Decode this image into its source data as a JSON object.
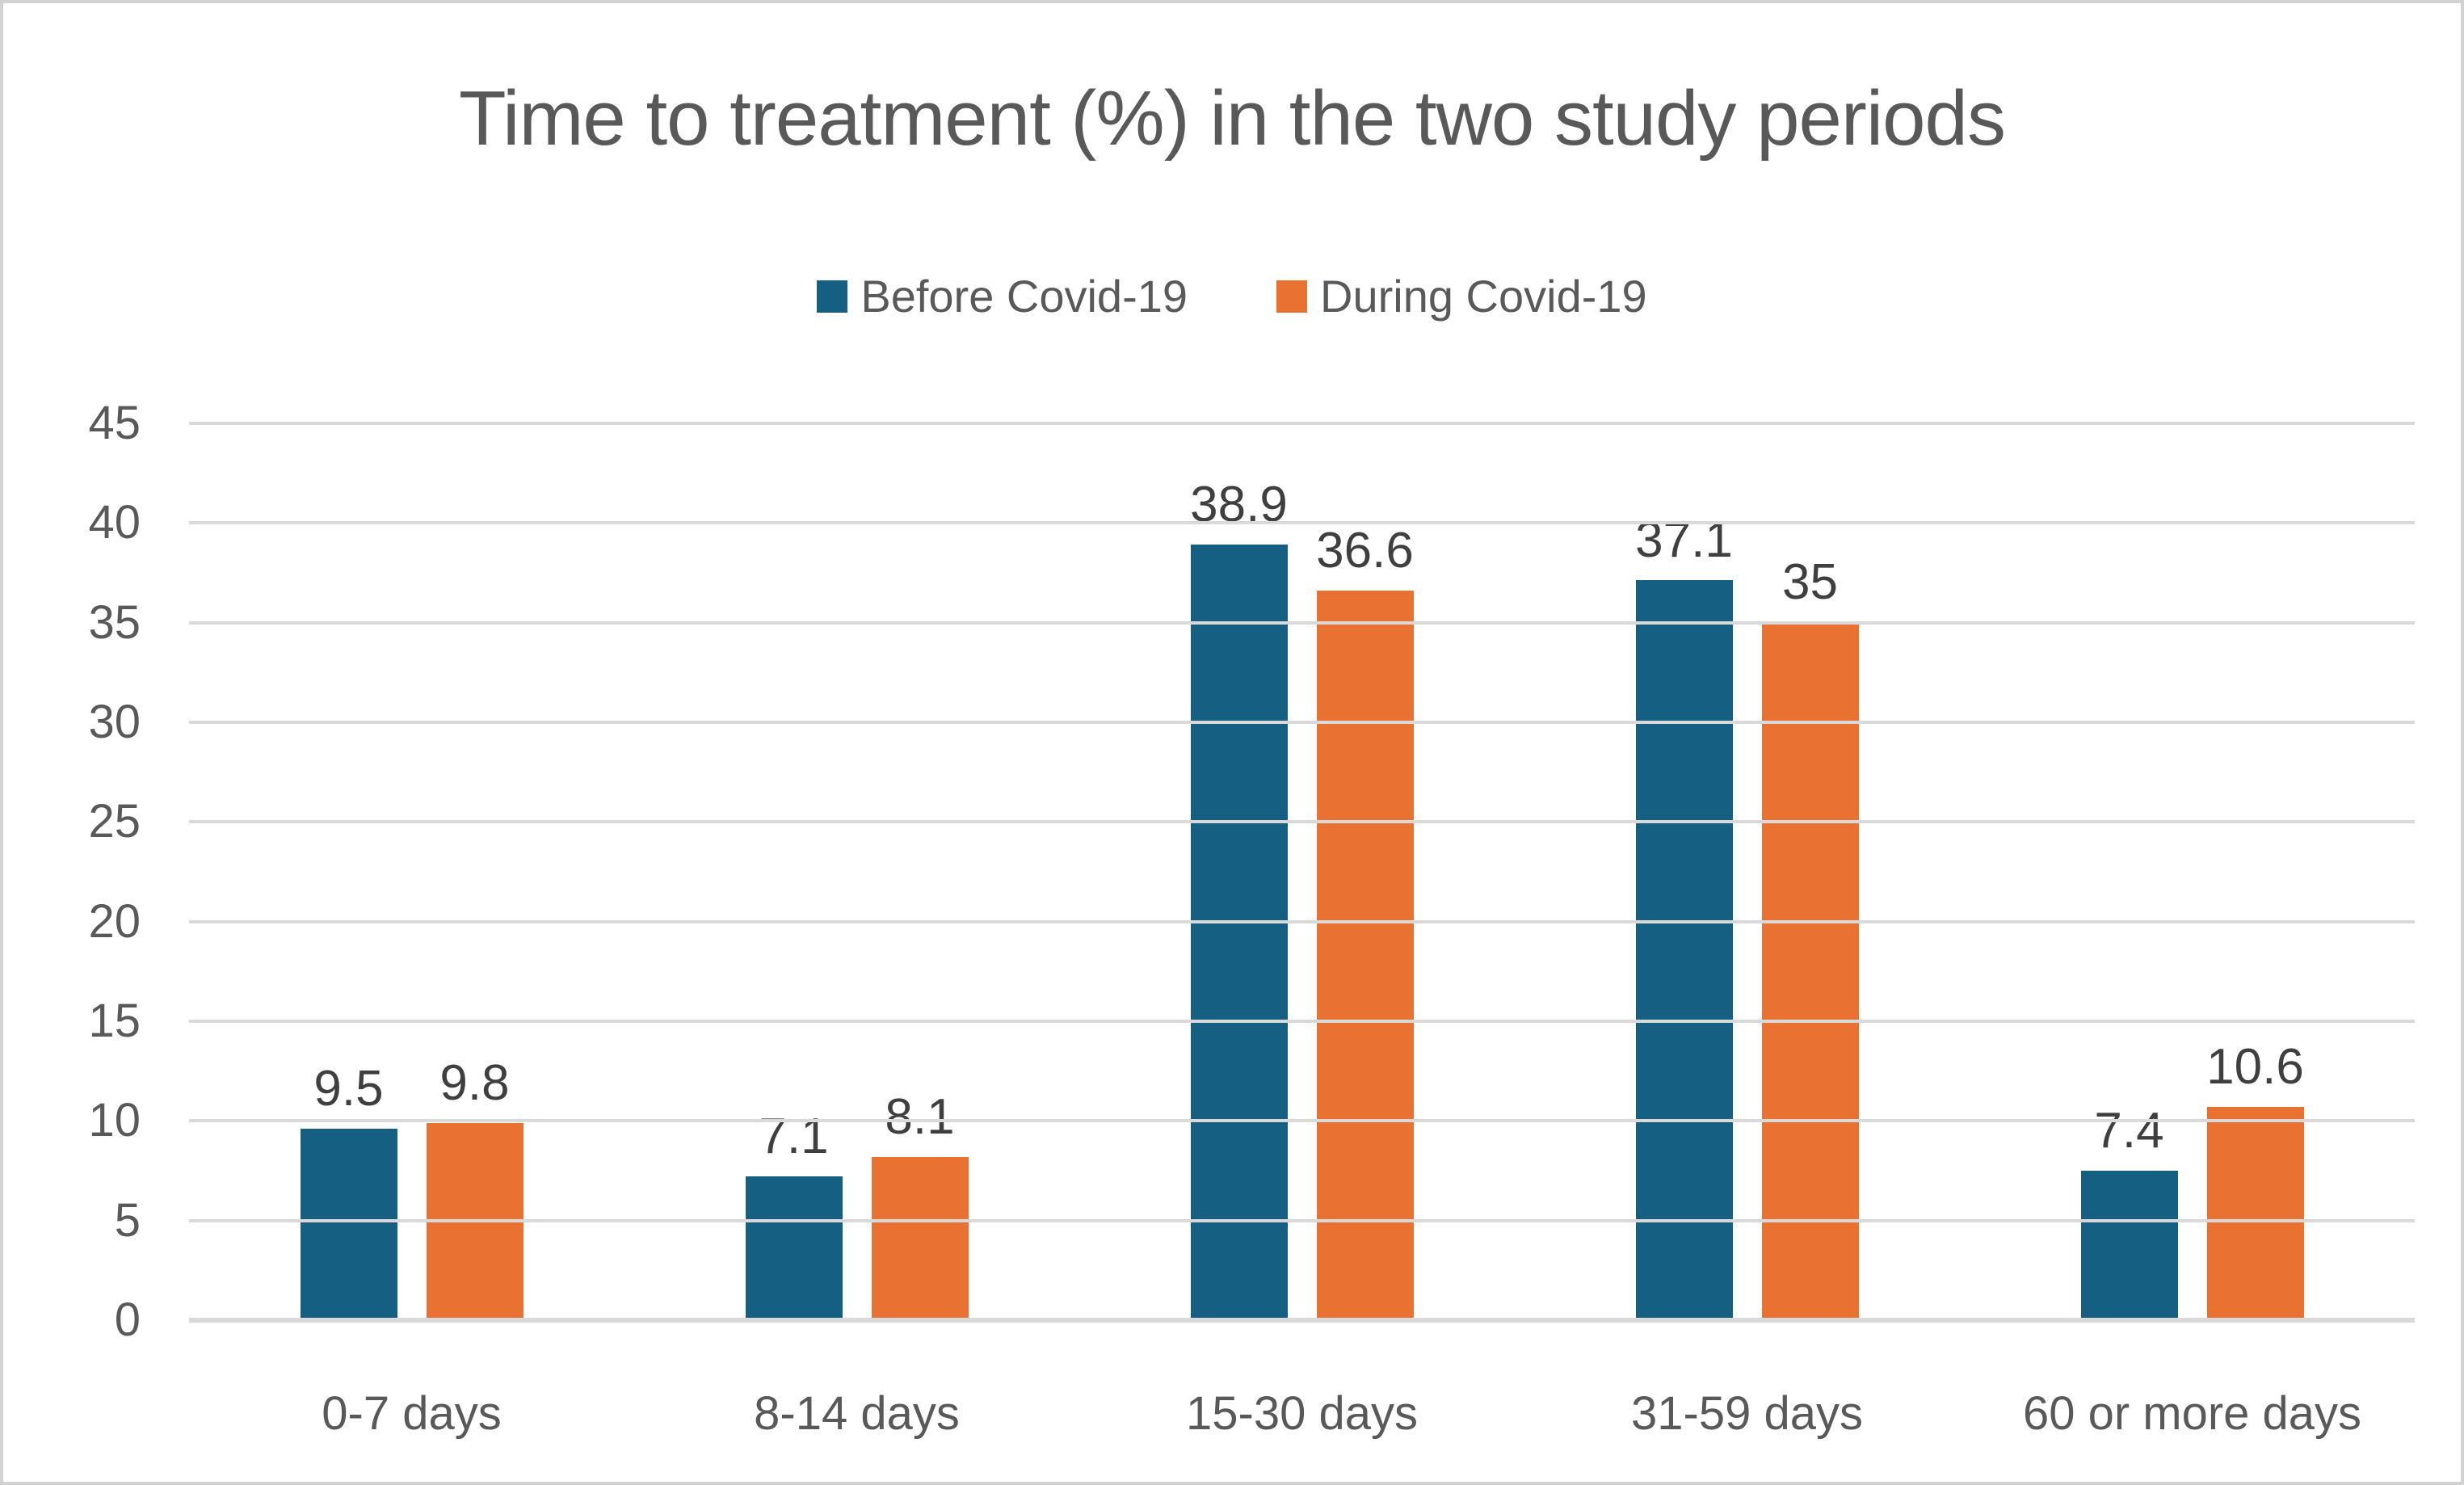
{
  "chart_data": {
    "type": "bar",
    "title": "Time to treatment (%) in the two study periods",
    "categories": [
      "0-7 days",
      "8-14 days",
      "15-30 days",
      "31-59 days",
      "60 or more days"
    ],
    "series": [
      {
        "name": "Before Covid-19",
        "color": "#156082",
        "values": [
          9.5,
          7.1,
          38.9,
          37.1,
          7.4
        ]
      },
      {
        "name": "During Covid-19",
        "color": "#E97132",
        "values": [
          9.8,
          8.1,
          36.6,
          35,
          10.6
        ]
      }
    ],
    "xlabel": "",
    "ylabel": "",
    "ylim": [
      0,
      45
    ],
    "ytick_step": 5,
    "grid": true,
    "legend_position": "top",
    "value_labels_shown": true,
    "colors": {
      "title_text": "#595959",
      "axis_text": "#595959",
      "value_label_text": "#3f3f3f",
      "gridline": "#d9d9d9",
      "border": "#d2d2d2",
      "background": "#ffffff"
    }
  }
}
